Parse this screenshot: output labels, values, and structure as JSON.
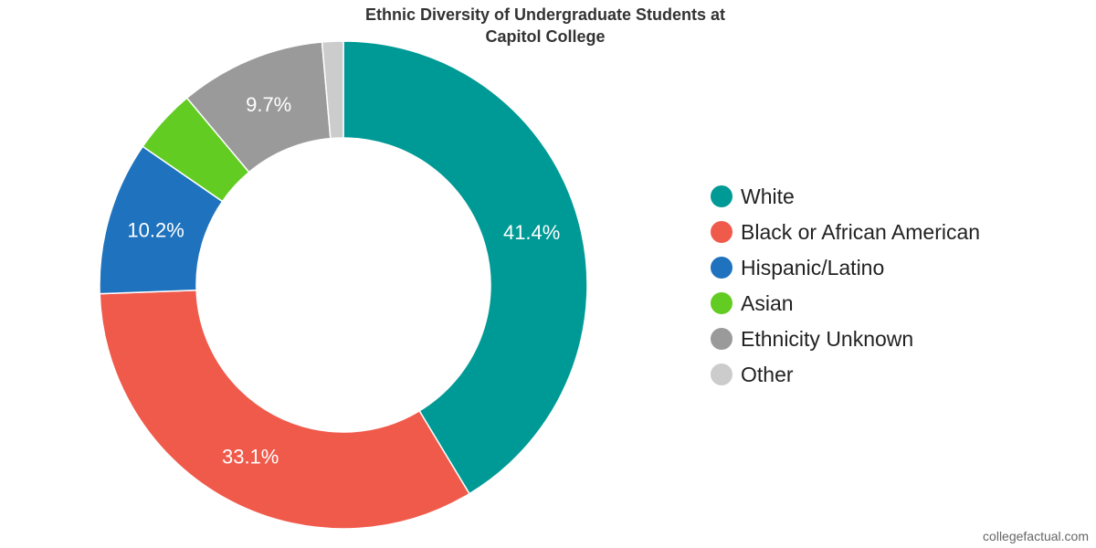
{
  "chart_data": {
    "type": "pie",
    "title_lines": [
      "Ethnic Diversity of Undergraduate Students at",
      "Capitol College"
    ],
    "slices": [
      {
        "name": "White",
        "value": 41.4,
        "label": "41.4%",
        "color": "#009a96"
      },
      {
        "name": "Black or African American",
        "value": 33.1,
        "label": "33.1%",
        "color": "#f05a4b"
      },
      {
        "name": "Hispanic/Latino",
        "value": 10.2,
        "label": "10.2%",
        "color": "#1f72bd"
      },
      {
        "name": "Asian",
        "value": 4.3,
        "label": "",
        "color": "#62cc23"
      },
      {
        "name": "Ethnicity Unknown",
        "value": 9.7,
        "label": "9.7%",
        "color": "#9a9a9a"
      },
      {
        "name": "Other",
        "value": 1.4,
        "label": "",
        "color": "#cccccc"
      }
    ],
    "legend_position": "right"
  },
  "watermark": "collegefactual.com"
}
